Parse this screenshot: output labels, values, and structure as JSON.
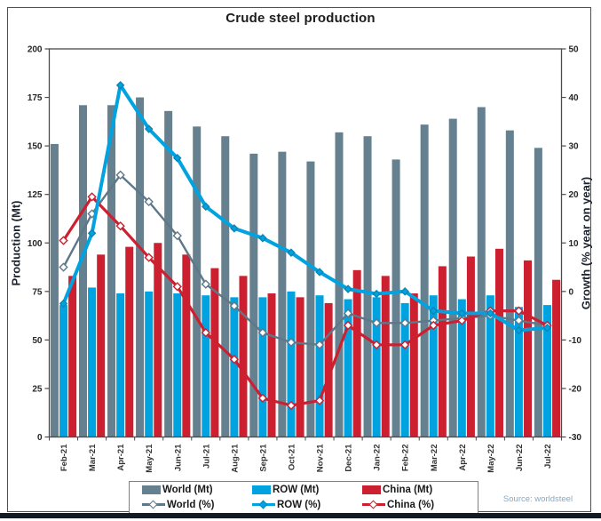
{
  "figure": {
    "background": "#ffffff",
    "frame_border_color": "#4f4f4f",
    "bottom_bar_color": "#141a24"
  },
  "chart_data": {
    "type": "combo-bar-line",
    "title": "Crude steel production",
    "source": "Source: worldsteel",
    "grid": false,
    "legend_position": "bottom",
    "categories": [
      "Feb-21",
      "Mar-21",
      "Apr-21",
      "May-21",
      "Jun-21",
      "Jul-21",
      "Aug-21",
      "Sep-21",
      "Oct-21",
      "Nov-21",
      "Dec-21",
      "Jan-22",
      "Feb-22",
      "Mar-22",
      "Apr-22",
      "May-22",
      "Jun-22",
      "Jul-22"
    ],
    "bar_series": [
      {
        "name": "World (Mt)",
        "color": "#65808f",
        "values": [
          151,
          171,
          171,
          175,
          168,
          160,
          155,
          146,
          147,
          142,
          157,
          155,
          143,
          161,
          164,
          170,
          158,
          149
        ]
      },
      {
        "name": "ROW (Mt)",
        "color": "#00a3e0",
        "values": [
          68,
          77,
          74,
          75,
          74,
          73,
          72,
          72,
          75,
          73,
          71,
          72,
          69,
          73,
          71,
          73,
          67,
          68
        ]
      },
      {
        "name": "China (Mt)",
        "color": "#cc2030",
        "values": [
          83,
          94,
          98,
          100,
          94,
          87,
          83,
          74,
          72,
          69,
          86,
          83,
          74,
          88,
          93,
          97,
          91,
          81
        ]
      }
    ],
    "line_series": [
      {
        "name": "World (%)",
        "color": "#5e7889",
        "marker": "open-diamond",
        "line_width": 2.4,
        "values": [
          5,
          16,
          24,
          18.5,
          11.5,
          1.5,
          -3,
          -8.5,
          -10.5,
          -11,
          -4.5,
          -6.5,
          -6.5,
          -6,
          -5.5,
          -5,
          -6,
          -7
        ]
      },
      {
        "name": "ROW (%)",
        "color": "#00a3e0",
        "marker": "solid-diamond",
        "marker_stroke": "#0d85b5",
        "line_width": 4,
        "values": [
          -2.5,
          12,
          42.5,
          33.5,
          27.5,
          17.5,
          13,
          11,
          8,
          4,
          0.5,
          -0.5,
          0,
          -4,
          -4.5,
          -4.5,
          -8,
          -7.5
        ]
      },
      {
        "name": "China (%)",
        "color": "#cc2030",
        "marker": "open-diamond",
        "line_width": 3.2,
        "values": [
          10.5,
          19.5,
          13.5,
          7,
          1,
          -8.5,
          -14,
          -22,
          -23.5,
          -22.5,
          -7,
          -11,
          -11,
          -7,
          -6,
          -4,
          -4,
          -7
        ]
      }
    ],
    "axis_left": {
      "label": "Production (Mt)",
      "min": 0,
      "max": 200,
      "step": 25,
      "ticks": [
        0,
        25,
        50,
        75,
        100,
        125,
        150,
        175,
        200
      ]
    },
    "axis_right": {
      "label": "Growth (% year on year)",
      "min": -30,
      "max": 50,
      "step": 10,
      "ticks": [
        -30,
        -20,
        -10,
        0,
        10,
        20,
        30,
        40,
        50
      ]
    }
  }
}
